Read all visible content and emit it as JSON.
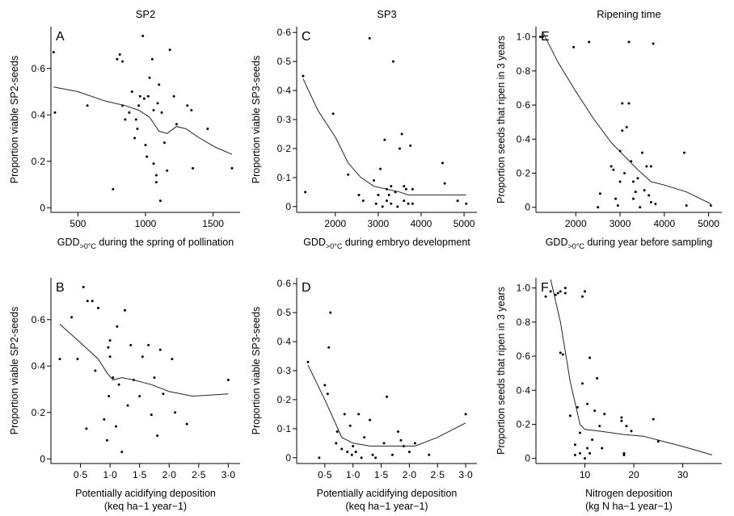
{
  "chart_data": [
    {
      "type": "scatter",
      "panel": "A",
      "column_title": "SP2",
      "xlabel": "GDD>0°C during the spring of pollination",
      "xlabel_main": "GDD",
      "xlabel_sub": ">0°C",
      "xlabel_rest": " during the spring of pollination",
      "xlabel2": "",
      "ylabel": "Proportion viable SP2-seeds",
      "xlim": [
        300,
        1700
      ],
      "ylim": [
        -0.02,
        0.78
      ],
      "xticks": [
        500,
        1000,
        1500
      ],
      "xtick_labels": [
        "500",
        "1000",
        "1500"
      ],
      "yticks": [
        0,
        0.2,
        0.4,
        0.6
      ],
      "ytick_labels": [
        "0",
        "0·2",
        "0·4",
        "0·6"
      ],
      "points": [
        [
          320,
          0.67
        ],
        [
          330,
          0.41
        ],
        [
          570,
          0.44
        ],
        [
          760,
          0.08
        ],
        [
          790,
          0.64
        ],
        [
          810,
          0.66
        ],
        [
          830,
          0.63
        ],
        [
          830,
          0.44
        ],
        [
          850,
          0.38
        ],
        [
          880,
          0.41
        ],
        [
          900,
          0.5
        ],
        [
          920,
          0.3
        ],
        [
          930,
          0.38
        ],
        [
          940,
          0.34
        ],
        [
          950,
          0.44
        ],
        [
          960,
          0.48
        ],
        [
          980,
          0.74
        ],
        [
          990,
          0.47
        ],
        [
          1000,
          0.27
        ],
        [
          1010,
          0.22
        ],
        [
          1020,
          0.48
        ],
        [
          1030,
          0.56
        ],
        [
          1050,
          0.64
        ],
        [
          1060,
          0.19
        ],
        [
          1060,
          0.42
        ],
        [
          1080,
          0.11
        ],
        [
          1080,
          0.14
        ],
        [
          1090,
          0.45
        ],
        [
          1100,
          0.53
        ],
        [
          1110,
          0.03
        ],
        [
          1120,
          0.41
        ],
        [
          1140,
          0.28
        ],
        [
          1160,
          0.16
        ],
        [
          1180,
          0.68
        ],
        [
          1210,
          0.48
        ],
        [
          1230,
          0.36
        ],
        [
          1310,
          0.44
        ],
        [
          1340,
          0.42
        ],
        [
          1350,
          0.17
        ],
        [
          1460,
          0.34
        ],
        [
          1640,
          0.17
        ]
      ],
      "fit_line": [
        [
          320,
          0.52
        ],
        [
          500,
          0.5
        ],
        [
          700,
          0.46
        ],
        [
          850,
          0.44
        ],
        [
          950,
          0.42
        ],
        [
          1030,
          0.39
        ],
        [
          1100,
          0.33
        ],
        [
          1160,
          0.32
        ],
        [
          1230,
          0.35
        ],
        [
          1300,
          0.34
        ],
        [
          1400,
          0.3
        ],
        [
          1520,
          0.26
        ],
        [
          1640,
          0.23
        ]
      ]
    },
    {
      "type": "scatter",
      "panel": "C",
      "column_title": "SP3",
      "xlabel": "GDD>0°C during embryo development",
      "xlabel_main": "GDD",
      "xlabel_sub": ">0°C",
      "xlabel_rest": " during embryo development",
      "xlabel2": "",
      "ylabel": "Proportion viable SP3-seeds",
      "xlim": [
        1100,
        5300
      ],
      "ylim": [
        -0.02,
        0.62
      ],
      "xticks": [
        2000,
        3000,
        4000,
        5000
      ],
      "xtick_labels": [
        "2000",
        "3000",
        "4000",
        "5000"
      ],
      "yticks": [
        0,
        0.1,
        0.2,
        0.3,
        0.4,
        0.5,
        0.6
      ],
      "ytick_labels": [
        "0",
        "0·1",
        "0·2",
        "0·3",
        "0·4",
        "0·5",
        "0·6"
      ],
      "points": [
        [
          1250,
          0.45
        ],
        [
          1300,
          0.05
        ],
        [
          1950,
          0.32
        ],
        [
          2300,
          0.11
        ],
        [
          2550,
          0.04
        ],
        [
          2650,
          0.02
        ],
        [
          2800,
          0.58
        ],
        [
          2900,
          0.09
        ],
        [
          2950,
          0.01
        ],
        [
          3000,
          0.04
        ],
        [
          3050,
          0.13
        ],
        [
          3100,
          0.0
        ],
        [
          3150,
          0.23
        ],
        [
          3200,
          0.02
        ],
        [
          3200,
          0.06
        ],
        [
          3250,
          0.04
        ],
        [
          3300,
          0.07
        ],
        [
          3300,
          0.01
        ],
        [
          3350,
          0.5
        ],
        [
          3400,
          0.05
        ],
        [
          3450,
          0.0
        ],
        [
          3500,
          0.2
        ],
        [
          3550,
          0.25
        ],
        [
          3600,
          0.02
        ],
        [
          3600,
          0.07
        ],
        [
          3650,
          0.06
        ],
        [
          3700,
          0.01
        ],
        [
          3750,
          0.21
        ],
        [
          3800,
          0.06
        ],
        [
          3800,
          0.01
        ],
        [
          4500,
          0.15
        ],
        [
          4550,
          0.08
        ],
        [
          4850,
          0.02
        ],
        [
          5050,
          0.01
        ]
      ],
      "fit_line": [
        [
          1250,
          0.44
        ],
        [
          1600,
          0.33
        ],
        [
          2000,
          0.24
        ],
        [
          2300,
          0.15
        ],
        [
          2600,
          0.1
        ],
        [
          2900,
          0.07
        ],
        [
          3200,
          0.06
        ],
        [
          3500,
          0.05
        ],
        [
          3700,
          0.04
        ],
        [
          4000,
          0.04
        ],
        [
          4500,
          0.04
        ],
        [
          5050,
          0.04
        ]
      ]
    },
    {
      "type": "scatter",
      "panel": "E",
      "column_title": "Ripening time",
      "xlabel": "GDD>0°C during year before sampling",
      "xlabel_main": "GDD",
      "xlabel_sub": ">0°C",
      "xlabel_rest": " during year before sampling",
      "xlabel2": "",
      "ylabel": "Proportion seeds that ripen in 3 years",
      "xlim": [
        1100,
        5300
      ],
      "ylim": [
        -0.03,
        1.06
      ],
      "xticks": [
        2000,
        3000,
        4000,
        5000
      ],
      "xtick_labels": [
        "2000",
        "3000",
        "4000",
        "5000"
      ],
      "yticks": [
        0,
        0.2,
        0.4,
        0.6,
        0.8,
        1.0
      ],
      "ytick_labels": [
        "0",
        "0·2",
        "0·4",
        "0·6",
        "0·8",
        "1·0"
      ],
      "points": [
        [
          1200,
          1.0
        ],
        [
          1250,
          1.0
        ],
        [
          1950,
          0.94
        ],
        [
          2300,
          0.97
        ],
        [
          2500,
          0.0
        ],
        [
          2550,
          0.08
        ],
        [
          2800,
          0.24
        ],
        [
          2850,
          0.22
        ],
        [
          2900,
          0.05
        ],
        [
          2950,
          0.01
        ],
        [
          3000,
          0.15
        ],
        [
          3000,
          0.33
        ],
        [
          3050,
          0.45
        ],
        [
          3050,
          0.61
        ],
        [
          3100,
          0.2
        ],
        [
          3150,
          0.47
        ],
        [
          3200,
          0.61
        ],
        [
          3200,
          0.97
        ],
        [
          3250,
          0.27
        ],
        [
          3300,
          0.15
        ],
        [
          3300,
          0.05
        ],
        [
          3350,
          0.09
        ],
        [
          3400,
          0.17
        ],
        [
          3450,
          0.0
        ],
        [
          3500,
          0.32
        ],
        [
          3550,
          0.1
        ],
        [
          3600,
          0.24
        ],
        [
          3650,
          0.07
        ],
        [
          3700,
          0.24
        ],
        [
          3700,
          0.03
        ],
        [
          3750,
          0.96
        ],
        [
          3800,
          0.02
        ],
        [
          4450,
          0.32
        ],
        [
          4500,
          0.01
        ],
        [
          5050,
          0.01
        ]
      ],
      "fit_line": [
        [
          1250,
          1.03
        ],
        [
          1600,
          0.85
        ],
        [
          2000,
          0.68
        ],
        [
          2400,
          0.52
        ],
        [
          2800,
          0.38
        ],
        [
          3100,
          0.3
        ],
        [
          3400,
          0.22
        ],
        [
          3700,
          0.15
        ],
        [
          4000,
          0.13
        ],
        [
          4500,
          0.09
        ],
        [
          5050,
          0.02
        ]
      ]
    },
    {
      "type": "scatter",
      "panel": "B",
      "column_title": "",
      "xlabel": "Potentially acidifying deposition (keq ha−1 year−1)",
      "xlabel_main": "Potentially acidifying deposition",
      "xlabel_sub": "",
      "xlabel_rest": "",
      "xlabel2": "(keq ha−1 year−1)",
      "ylabel": "Proportion viable SP2-seeds",
      "xlim": [
        0,
        3.2
      ],
      "ylim": [
        -0.02,
        0.78
      ],
      "xticks": [
        0.5,
        1.0,
        1.5,
        2.0,
        2.5,
        3.0
      ],
      "xtick_labels": [
        "0·5",
        "1·0",
        "1·5",
        "2·0",
        "2·5",
        "3·0"
      ],
      "yticks": [
        0,
        0.2,
        0.4,
        0.6
      ],
      "ytick_labels": [
        "0",
        "0·2",
        "0·4",
        "0·6"
      ],
      "points": [
        [
          0.15,
          0.43
        ],
        [
          0.35,
          0.61
        ],
        [
          0.45,
          0.43
        ],
        [
          0.55,
          0.74
        ],
        [
          0.6,
          0.13
        ],
        [
          0.62,
          0.68
        ],
        [
          0.7,
          0.68
        ],
        [
          0.75,
          0.38
        ],
        [
          0.8,
          0.65
        ],
        [
          0.9,
          0.17
        ],
        [
          0.95,
          0.08
        ],
        [
          0.97,
          0.48
        ],
        [
          0.98,
          0.27
        ],
        [
          1.0,
          0.44
        ],
        [
          1.0,
          0.51
        ],
        [
          1.05,
          0.35
        ],
        [
          1.1,
          0.14
        ],
        [
          1.12,
          0.57
        ],
        [
          1.15,
          0.32
        ],
        [
          1.2,
          0.03
        ],
        [
          1.25,
          0.64
        ],
        [
          1.3,
          0.23
        ],
        [
          1.35,
          0.49
        ],
        [
          1.4,
          0.34
        ],
        [
          1.5,
          0.27
        ],
        [
          1.55,
          0.44
        ],
        [
          1.65,
          0.49
        ],
        [
          1.7,
          0.19
        ],
        [
          1.75,
          0.35
        ],
        [
          1.8,
          0.1
        ],
        [
          1.85,
          0.47
        ],
        [
          1.9,
          0.28
        ],
        [
          2.05,
          0.43
        ],
        [
          2.1,
          0.2
        ],
        [
          2.3,
          0.15
        ],
        [
          3.0,
          0.34
        ]
      ],
      "fit_line": [
        [
          0.15,
          0.58
        ],
        [
          0.5,
          0.5
        ],
        [
          0.8,
          0.43
        ],
        [
          0.95,
          0.37
        ],
        [
          1.05,
          0.34
        ],
        [
          1.2,
          0.35
        ],
        [
          1.4,
          0.34
        ],
        [
          1.7,
          0.32
        ],
        [
          2.0,
          0.29
        ],
        [
          2.4,
          0.27
        ],
        [
          3.0,
          0.28
        ]
      ]
    },
    {
      "type": "scatter",
      "panel": "D",
      "column_title": "",
      "xlabel": "Potentially acidifying deposition (keq ha−1 year−1)",
      "xlabel_main": "Potentially acidifying deposition",
      "xlabel_sub": "",
      "xlabel_rest": "",
      "xlabel2": "(keq ha−1 year−1)",
      "ylabel": "Proportion viable SP3-seeds",
      "xlim": [
        0,
        3.2
      ],
      "ylim": [
        -0.02,
        0.62
      ],
      "xticks": [
        0.5,
        1.0,
        1.5,
        2.0,
        2.5,
        3.0
      ],
      "xtick_labels": [
        "0·5",
        "1·0",
        "1·5",
        "2·0",
        "2·5",
        "3·0"
      ],
      "yticks": [
        0,
        0.1,
        0.2,
        0.3,
        0.4,
        0.5,
        0.6
      ],
      "ytick_labels": [
        "0",
        "0·1",
        "0·2",
        "0·3",
        "0·4",
        "0·5",
        "0·6"
      ],
      "points": [
        [
          0.2,
          0.33
        ],
        [
          0.4,
          0.0
        ],
        [
          0.5,
          0.25
        ],
        [
          0.55,
          0.22
        ],
        [
          0.57,
          0.38
        ],
        [
          0.6,
          0.5
        ],
        [
          0.7,
          0.05
        ],
        [
          0.72,
          0.09
        ],
        [
          0.8,
          0.03
        ],
        [
          0.85,
          0.15
        ],
        [
          0.9,
          0.02
        ],
        [
          0.95,
          0.11
        ],
        [
          0.98,
          0.01
        ],
        [
          1.0,
          0.04
        ],
        [
          1.05,
          0.02
        ],
        [
          1.1,
          0.15
        ],
        [
          1.15,
          0.0
        ],
        [
          1.2,
          0.07
        ],
        [
          1.3,
          0.13
        ],
        [
          1.35,
          0.01
        ],
        [
          1.4,
          0.0
        ],
        [
          1.55,
          0.05
        ],
        [
          1.6,
          0.21
        ],
        [
          1.7,
          0.01
        ],
        [
          1.8,
          0.09
        ],
        [
          1.85,
          0.06
        ],
        [
          1.9,
          0.04
        ],
        [
          2.0,
          0.02
        ],
        [
          2.1,
          0.05
        ],
        [
          2.35,
          0.01
        ],
        [
          3.0,
          0.15
        ]
      ],
      "fit_line": [
        [
          0.2,
          0.32
        ],
        [
          0.5,
          0.2
        ],
        [
          0.8,
          0.07
        ],
        [
          1.0,
          0.05
        ],
        [
          1.3,
          0.04
        ],
        [
          1.7,
          0.04
        ],
        [
          2.1,
          0.04
        ],
        [
          2.5,
          0.07
        ],
        [
          3.0,
          0.12
        ]
      ]
    },
    {
      "type": "scatter",
      "panel": "F",
      "column_title": "",
      "xlabel": "Nitrogen deposition (kg N ha−1 year−1)",
      "xlabel_main": "Nitrogen deposition",
      "xlabel_sub": "",
      "xlabel_rest": "",
      "xlabel2": "(kg N ha−1 year−1)",
      "ylabel": "Proportion seeds that ripen in 3 years",
      "xlim": [
        0,
        38
      ],
      "ylim": [
        -0.03,
        1.06
      ],
      "xticks": [
        10,
        20,
        30
      ],
      "xtick_labels": [
        "10",
        "20",
        "30"
      ],
      "yticks": [
        0,
        0.2,
        0.4,
        0.6,
        0.8,
        1.0
      ],
      "ytick_labels": [
        "0",
        "0·2",
        "0·4",
        "0·6",
        "0·8",
        "1·0"
      ],
      "points": [
        [
          2,
          0.95
        ],
        [
          3,
          0.98
        ],
        [
          4,
          0.96
        ],
        [
          4.5,
          0.97
        ],
        [
          5,
          0.98
        ],
        [
          5,
          0.62
        ],
        [
          5.5,
          0.61
        ],
        [
          6,
          1.0
        ],
        [
          6,
          0.97
        ],
        [
          7,
          0.25
        ],
        [
          8,
          0.08
        ],
        [
          8,
          0.02
        ],
        [
          8.5,
          0.3
        ],
        [
          9,
          0.03
        ],
        [
          9,
          0.15
        ],
        [
          9.5,
          0.95
        ],
        [
          9.5,
          0.44
        ],
        [
          10,
          0.98
        ],
        [
          10,
          0.0
        ],
        [
          10.5,
          0.32
        ],
        [
          10.5,
          0.06
        ],
        [
          11,
          0.59
        ],
        [
          11,
          0.03
        ],
        [
          11.5,
          0.11
        ],
        [
          12,
          0.28
        ],
        [
          12.5,
          0.47
        ],
        [
          13,
          0.19
        ],
        [
          13.5,
          0.06
        ],
        [
          14,
          0.26
        ],
        [
          17.5,
          0.24
        ],
        [
          17.5,
          0.22
        ],
        [
          18,
          0.03
        ],
        [
          18,
          0.02
        ],
        [
          18.5,
          0.19
        ],
        [
          19.5,
          0.16
        ],
        [
          24,
          0.23
        ],
        [
          25,
          0.1
        ]
      ],
      "fit_line": [
        [
          3,
          1.05
        ],
        [
          5,
          0.8
        ],
        [
          7,
          0.45
        ],
        [
          9,
          0.2
        ],
        [
          10,
          0.17
        ],
        [
          13,
          0.16
        ],
        [
          18,
          0.14
        ],
        [
          22,
          0.13
        ],
        [
          26,
          0.1
        ],
        [
          30,
          0.07
        ],
        [
          36,
          0.02
        ]
      ]
    }
  ]
}
